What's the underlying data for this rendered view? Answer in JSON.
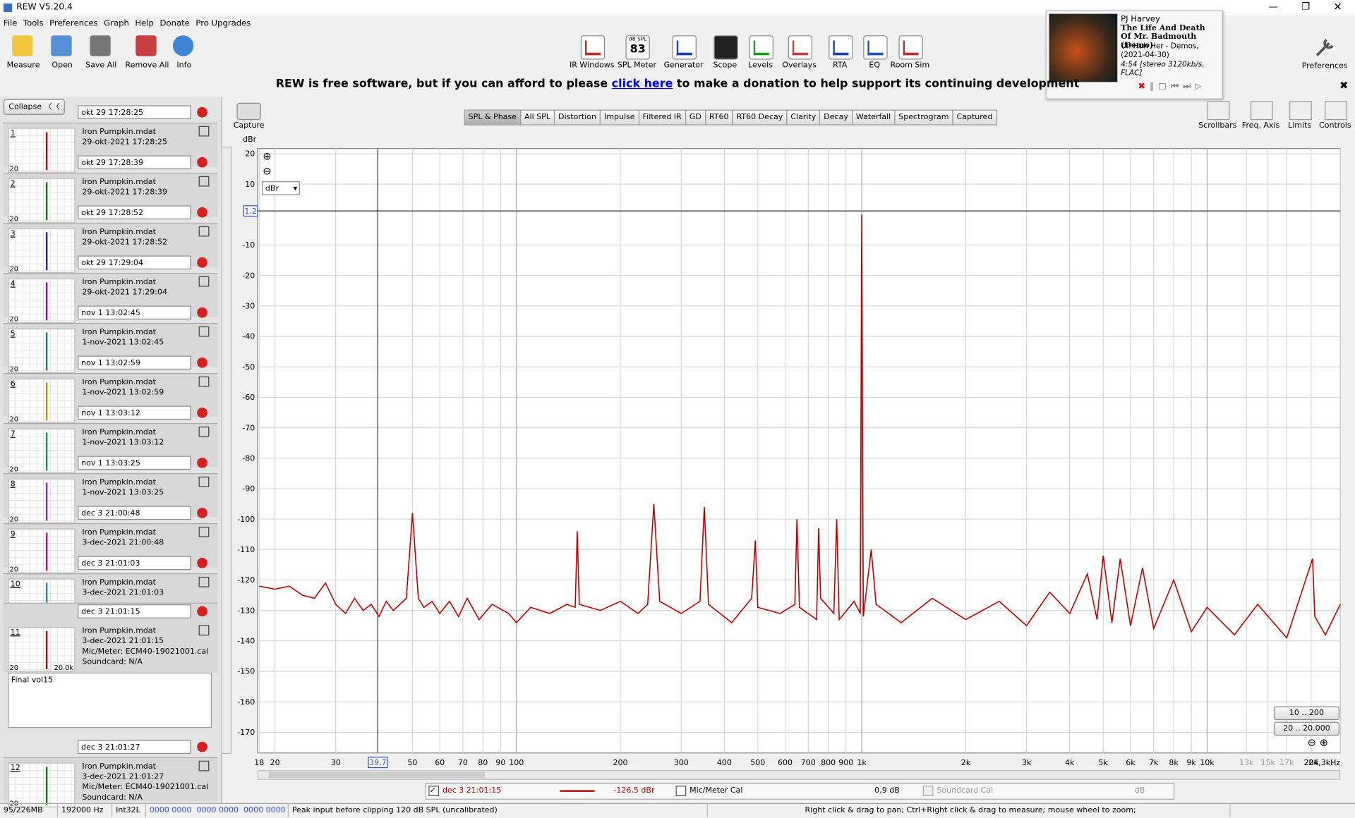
{
  "window": {
    "title": "REW V5.20.4"
  },
  "menu": [
    "File",
    "Tools",
    "Preferences",
    "Graph",
    "Help",
    "Donate",
    "Pro Upgrades"
  ],
  "toolbar_left": [
    "Measure",
    "Open",
    "Save All",
    "Remove All",
    "Info"
  ],
  "toolbar_center": [
    "IR Windows",
    "SPL Meter",
    "Generator",
    "Scope",
    "Levels",
    "Overlays",
    "RTA",
    "EQ",
    "Room Sim"
  ],
  "spl_meter": {
    "unit": "dB SPL",
    "reading": "83"
  },
  "toolbar_right": "Preferences",
  "now_playing": {
    "artist": "PJ Harvey",
    "title": "The Life And Death Of Mr. Badmouth (Demo)",
    "album": "Uh Huh Her - Demos, (2021-04-30)",
    "info": "4:54 [stereo 3120kb/s, FLAC]"
  },
  "banner": {
    "before": "REW is free software, but if you can afford to please",
    "link": "click here",
    "after": "to make a donation to help support its continuing development"
  },
  "sidebar": {
    "collapse": "Collapse",
    "notes": "Final vol15",
    "measurements": [
      {
        "label": "okt 29 17:28:25",
        "number": "1",
        "file": "Iron Pumpkin.mdat",
        "date": "29-okt-2021 17:28:25",
        "thumb_axis": "20",
        "color": "#c00000"
      },
      {
        "label": "okt 29 17:28:39",
        "number": "2",
        "file": "Iron Pumpkin.mdat",
        "date": "29-okt-2021 17:28:39",
        "thumb_axis": "20",
        "color": "#008000"
      },
      {
        "label": "okt 29 17:28:52",
        "number": "3",
        "file": "Iron Pumpkin.mdat",
        "date": "29-okt-2021 17:28:52",
        "thumb_axis": "20",
        "color": "#2020c0"
      },
      {
        "label": "okt 29 17:29:04",
        "number": "4",
        "file": "Iron Pumpkin.mdat",
        "date": "29-okt-2021 17:29:04",
        "thumb_axis": "20",
        "color": "#a000c0"
      },
      {
        "label": "nov 1 13:02:45",
        "number": "5",
        "file": "Iron Pumpkin.mdat",
        "date": "1-nov-2021 13:02:45",
        "thumb_axis": "20",
        "color": "#008080"
      },
      {
        "label": "nov 1 13:02:59",
        "number": "6",
        "file": "Iron Pumpkin.mdat",
        "date": "1-nov-2021 13:02:59",
        "thumb_axis": "20",
        "color": "#c09000"
      },
      {
        "label": "nov 1 13:03:12",
        "number": "7",
        "file": "Iron Pumpkin.mdat",
        "date": "1-nov-2021 13:03:12",
        "thumb_axis": "20",
        "color": "#00a040"
      },
      {
        "label": "nov 1 13:03:25",
        "number": "8",
        "file": "Iron Pumpkin.mdat",
        "date": "1-nov-2021 13:03:25",
        "thumb_axis": "20",
        "color": "#9020c0"
      },
      {
        "label": "dec 3 21:00:48",
        "number": "9",
        "file": "Iron Pumpkin.mdat",
        "date": "3-dec-2021 21:00:48",
        "thumb_axis": "20",
        "color": "#c000a0"
      },
      {
        "label": "dec 3 21:01:03",
        "number": "10",
        "file": "Iron Pumpkin.mdat",
        "date": "3-dec-2021 21:01:03",
        "thumb_axis": "20",
        "color": "#2080c0"
      },
      {
        "label": "dec 3 21:01:15",
        "number": "11",
        "file": "Iron Pumpkin.mdat",
        "date": "3-dec-2021 21:01:15",
        "mic": "Mic/Meter: ECM40-19021001.cal",
        "soundcard": "Soundcard: N/A",
        "thumb_axis": "20",
        "thumb_high": "20.0k",
        "color": "#c00000"
      },
      {
        "label": "dec 3 21:01:27",
        "number": "12",
        "file": "Iron Pumpkin.mdat",
        "date": "3-dec-2021 21:01:27",
        "mic": "Mic/Meter: ECM40-19021001.cal",
        "soundcard": "Soundcard: N/A",
        "thumb_axis": "20",
        "color": "#008000"
      }
    ]
  },
  "graph": {
    "capture": "Capture",
    "tabs": [
      "SPL & Phase",
      "All SPL",
      "Distortion",
      "Impulse",
      "Filtered IR",
      "GD",
      "RT60",
      "RT60 Decay",
      "Clarity",
      "Decay",
      "Waterfall",
      "Spectrogram",
      "Captured"
    ],
    "active_tab": 0,
    "tools": [
      "Scrollbars",
      "Freq. Axis",
      "Limits",
      "Controls"
    ],
    "unit_select": "dBr",
    "ranges": [
      "10 .. 200",
      "20 .. 20.000"
    ]
  },
  "chart_data": {
    "type": "line",
    "y_label": "dBr",
    "log_x": true,
    "grid": true,
    "x": [
      18,
      20,
      22,
      24,
      26,
      28,
      30,
      32,
      34,
      36,
      38,
      40,
      42,
      44,
      46,
      48,
      50,
      52,
      54,
      57,
      60,
      64,
      68,
      72,
      78,
      85,
      95,
      100,
      110,
      125,
      140,
      148,
      150,
      152,
      175,
      200,
      225,
      240,
      250,
      260,
      300,
      340,
      350,
      360,
      420,
      480,
      492,
      500,
      580,
      640,
      649,
      660,
      740,
      750,
      760,
      830,
      846,
      860,
      950,
      990,
      1000,
      1010,
      1065,
      1100,
      1300,
      1600,
      2000,
      2500,
      3000,
      3500,
      4000,
      4500,
      4800,
      5000,
      5300,
      5600,
      6000,
      6500,
      7000,
      8000,
      9000,
      10000,
      12000,
      14000,
      17000,
      20200,
      20500,
      22000,
      24300
    ],
    "series": [
      {
        "name": "dec 3 21:01:15",
        "color": "#c00000",
        "values": [
          -122,
          -123,
          -122,
          -125,
          -126,
          -121,
          -128,
          -131,
          -126,
          -130,
          -128,
          -132,
          -127,
          -130,
          -128,
          -126,
          -98,
          -126,
          -129,
          -127,
          -131,
          -127,
          -132,
          -126,
          -133,
          -128,
          -131,
          -134,
          -129,
          -131,
          -128,
          -129,
          -104,
          -128,
          -130,
          -127,
          -131,
          -128,
          -95,
          -127,
          -131,
          -127,
          -96,
          -128,
          -134,
          -126,
          -107,
          -129,
          -131,
          -128,
          -100,
          -129,
          -133,
          -103,
          -126,
          -131,
          -100,
          -133,
          -127,
          -131,
          0,
          -132,
          -110,
          -128,
          -134,
          -126,
          -133,
          -127,
          -135,
          -124,
          -131,
          -118,
          -133,
          -112,
          -134,
          -113,
          -135,
          -116,
          -136,
          -120,
          -137,
          -129,
          -138,
          -128,
          -139,
          -113,
          -132,
          -138,
          -128
        ]
      }
    ],
    "xlim": [
      17.8,
      24300
    ],
    "ylim": [
      -176.8,
      21.7
    ],
    "xticks": [
      18,
      20,
      30,
      50,
      60,
      70,
      80,
      90,
      100,
      200,
      300,
      400,
      500,
      600,
      700,
      800,
      900,
      {
        "value": 1000,
        "label": "1k"
      },
      {
        "value": 2000,
        "label": "2k"
      },
      {
        "value": 3000,
        "label": "3k"
      },
      {
        "value": 4000,
        "label": "4k"
      },
      {
        "value": 5000,
        "label": "5k"
      },
      {
        "value": 6000,
        "label": "6k"
      },
      {
        "value": 7000,
        "label": "7k"
      },
      {
        "value": 8000,
        "label": "8k"
      },
      {
        "value": 9000,
        "label": "9k"
      },
      {
        "value": 10000,
        "label": "10k"
      },
      {
        "value": 13000,
        "label": "13k"
      },
      {
        "value": 15000,
        "label": "15k"
      },
      {
        "value": 17000,
        "label": "17k"
      },
      {
        "value": 20000,
        "label": "20k"
      },
      {
        "value": 24300,
        "label": "24,3kHz"
      }
    ],
    "yticks": [
      20,
      10,
      -10,
      -20,
      -30,
      -40,
      -50,
      -60,
      -70,
      -80,
      -90,
      -100,
      -110,
      -120,
      -130,
      -140,
      -150,
      -160,
      -170
    ],
    "cursor": {
      "x": {
        "value": 39.7,
        "label": "39,7"
      },
      "y": {
        "value": 1.2,
        "label": "1,2"
      }
    }
  },
  "legend": {
    "name": "dec 3 21:01:15",
    "readout": "-126,5 dBr",
    "mic_cal": "Mic/Meter Cal",
    "mic_value": "0,9 dB",
    "soundcard_cal": "Soundcard Cal",
    "soundcard_value": "dB"
  },
  "status": [
    "95/226MB",
    "192000 Hz",
    "Int32L",
    "0000 0000  0000 0000  0000 0000",
    "Peak input before clipping 120 dB SPL (uncalibrated)",
    "Right click & drag to pan; Ctrl+Right click & drag to measure; mouse wheel to zoom;"
  ]
}
